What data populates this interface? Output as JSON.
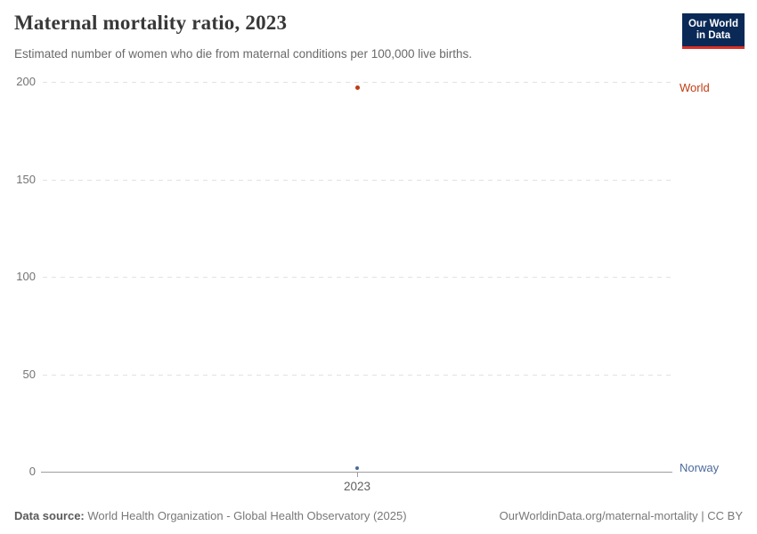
{
  "header": {
    "title": "Maternal mortality ratio, 2023",
    "subtitle": "Estimated number of women who die from maternal conditions per 100,000 live births."
  },
  "logo": {
    "line1": "Our World",
    "line2": "in Data",
    "background_color": "#0a2957",
    "accent_color": "#dc2f25"
  },
  "chart_data": {
    "type": "scatter",
    "title": "Maternal mortality ratio, 2023",
    "xlabel": "",
    "ylabel": "",
    "ylim": [
      0,
      200
    ],
    "yticks": [
      0,
      50,
      100,
      150,
      200
    ],
    "grid": "horizontal-dashed",
    "x_tick_labels": [
      "2023"
    ],
    "series": [
      {
        "name": "World",
        "x": 2023,
        "y": 197,
        "color": "#bf3d14"
      },
      {
        "name": "Norway",
        "x": 2023,
        "y": 2,
        "color": "#4c6a9c"
      }
    ],
    "legend_position": "right-edge-entity-labels"
  },
  "footer": {
    "datasource_label": "Data source:",
    "datasource_text": "World Health Organization - Global Health Observatory (2025)",
    "license_text": "OurWorldinData.org/maternal-mortality | CC BY"
  }
}
